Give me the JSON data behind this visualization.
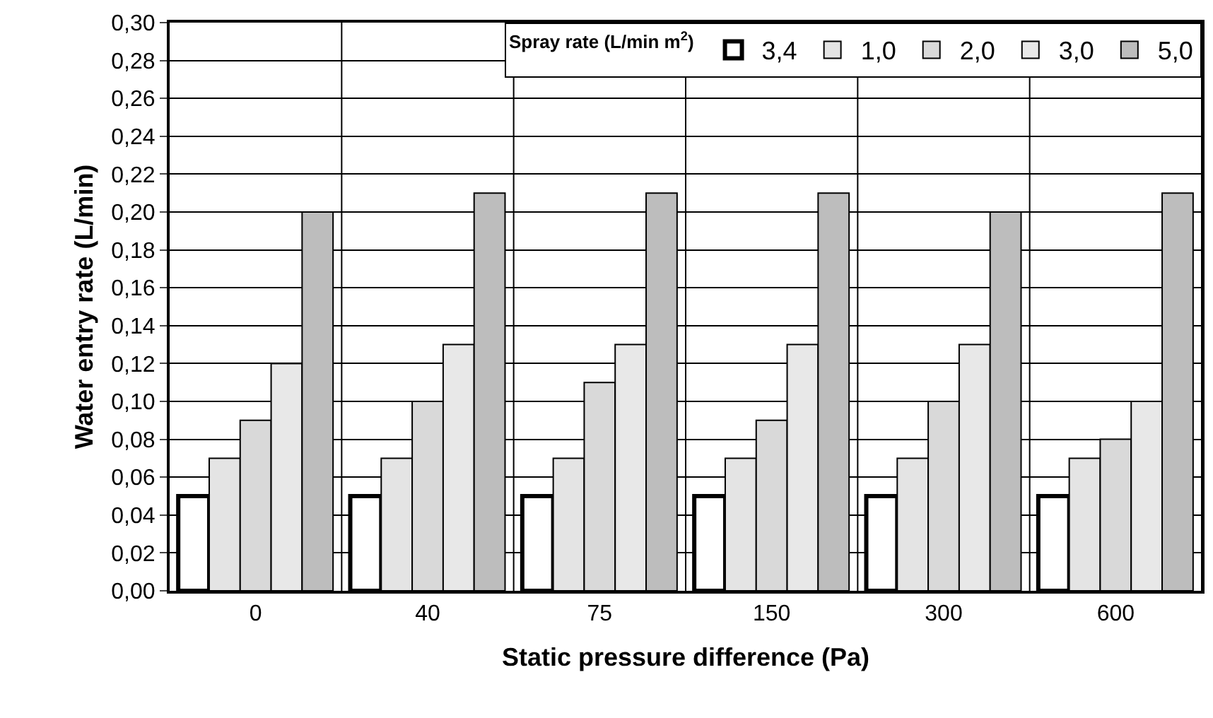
{
  "chart_data": {
    "type": "bar",
    "xlabel": "Static pressure difference (Pa)",
    "ylabel": "Water entry rate (L/min)",
    "legend_title": "Spray rate (L/min m$^{2}$)",
    "legend": "top right",
    "grid": true,
    "categories": [
      "0",
      "40",
      "75",
      "150",
      "300",
      "600"
    ],
    "series": [
      {
        "name": "3,4",
        "color": "#ffffff",
        "values": [
          0.05,
          0.05,
          0.05,
          0.05,
          0.05,
          0.05
        ]
      },
      {
        "name": "1,0",
        "color": "#e4e4e4",
        "values": [
          0.07,
          0.07,
          0.07,
          0.07,
          0.07,
          0.07
        ]
      },
      {
        "name": "2,0",
        "color": "#d9d9d9",
        "values": [
          0.09,
          0.1,
          0.11,
          0.09,
          0.1,
          0.08
        ]
      },
      {
        "name": "3,0",
        "color": "#e8e8e8",
        "values": [
          0.12,
          0.13,
          0.13,
          0.13,
          0.13,
          0.1
        ]
      },
      {
        "name": "5,0",
        "color": "#bdbdbd",
        "values": [
          0.2,
          0.21,
          0.21,
          0.21,
          0.2,
          0.21
        ]
      }
    ],
    "ylim": [
      0,
      0.3
    ],
    "yticks": [
      {
        "value": 0,
        "label": "0,00"
      },
      {
        "value": 0.02,
        "label": "0,02"
      },
      {
        "value": 0.04,
        "label": "0,04"
      },
      {
        "value": 0.06,
        "label": "0,06"
      },
      {
        "value": 0.08,
        "label": "0,08"
      },
      {
        "value": 0.1,
        "label": "0,10"
      },
      {
        "value": 0.12,
        "label": "0,12"
      },
      {
        "value": 0.14,
        "label": "0,14"
      },
      {
        "value": 0.16,
        "label": "0,16"
      },
      {
        "value": 0.18,
        "label": "0,18"
      },
      {
        "value": 0.2,
        "label": "0,20"
      },
      {
        "value": 0.22,
        "label": "0,22"
      },
      {
        "value": 0.24,
        "label": "0,24"
      },
      {
        "value": 0.26,
        "label": "0,26"
      },
      {
        "value": 0.28,
        "label": "0,28"
      },
      {
        "value": 0.3,
        "label": "0,30"
      }
    ]
  }
}
